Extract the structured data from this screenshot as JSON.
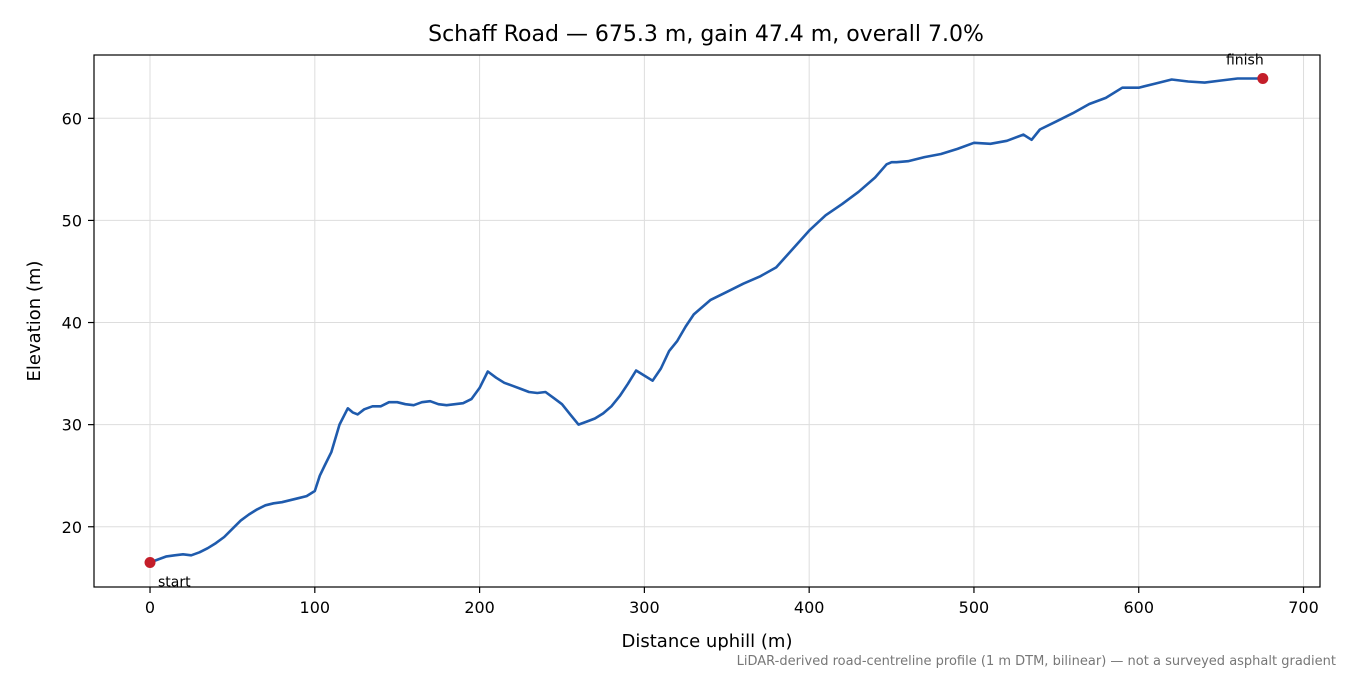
{
  "chart_data": {
    "type": "line",
    "title": "Schaff Road — 675.3 m, gain 47.4 m, overall 7.0%",
    "xlabel": "Distance uphill (m)",
    "ylabel": "Elevation (m)",
    "xlim": [
      -34,
      710
    ],
    "ylim": [
      14.1,
      66.2
    ],
    "xticks": [
      0,
      100,
      200,
      300,
      400,
      500,
      600,
      700
    ],
    "yticks": [
      20,
      30,
      40,
      50,
      60
    ],
    "grid": true,
    "line_color": "#1f5bad",
    "marker_color": "#c41e2a",
    "x": [
      0,
      5,
      10,
      15,
      20,
      25,
      30,
      35,
      40,
      45,
      50,
      55,
      60,
      65,
      70,
      75,
      80,
      85,
      90,
      95,
      100,
      103,
      106,
      110,
      115,
      120,
      123,
      126,
      130,
      135,
      140,
      145,
      150,
      155,
      160,
      165,
      170,
      175,
      180,
      185,
      190,
      195,
      200,
      205,
      210,
      215,
      220,
      225,
      230,
      235,
      240,
      245,
      250,
      255,
      260,
      265,
      270,
      275,
      280,
      285,
      290,
      295,
      300,
      305,
      310,
      315,
      320,
      325,
      330,
      340,
      350,
      360,
      370,
      380,
      390,
      400,
      410,
      420,
      430,
      440,
      447,
      450,
      453,
      460,
      470,
      480,
      490,
      500,
      510,
      520,
      530,
      535,
      540,
      550,
      560,
      570,
      580,
      590,
      600,
      610,
      620,
      630,
      640,
      650,
      660,
      670,
      675.3
    ],
    "y": [
      16.5,
      16.8,
      17.1,
      17.2,
      17.3,
      17.2,
      17.5,
      17.9,
      18.4,
      19.0,
      19.8,
      20.6,
      21.2,
      21.7,
      22.1,
      22.3,
      22.4,
      22.6,
      22.8,
      23.0,
      23.5,
      25.0,
      26.0,
      27.3,
      30.0,
      31.6,
      31.2,
      31.0,
      31.5,
      31.8,
      31.8,
      32.2,
      32.2,
      32.0,
      31.9,
      32.2,
      32.3,
      32.0,
      31.9,
      32.0,
      32.1,
      32.5,
      33.6,
      35.2,
      34.6,
      34.1,
      33.8,
      33.5,
      33.2,
      33.1,
      33.2,
      32.6,
      32.0,
      31.0,
      30.0,
      30.3,
      30.6,
      31.1,
      31.8,
      32.8,
      34.0,
      35.3,
      34.8,
      34.3,
      35.5,
      37.2,
      38.2,
      39.6,
      40.8,
      42.2,
      43.0,
      43.8,
      44.5,
      45.4,
      47.2,
      49.0,
      50.5,
      51.6,
      52.8,
      54.2,
      55.5,
      55.7,
      55.7,
      55.8,
      56.2,
      56.5,
      57.0,
      57.6,
      57.5,
      57.8,
      58.4,
      57.9,
      58.9,
      59.7,
      60.5,
      61.4,
      62.0,
      63.0,
      63.0,
      63.4,
      63.8,
      63.6,
      63.5,
      63.7,
      63.9,
      63.9,
      63.9
    ],
    "annotations": [
      {
        "label": "start",
        "x": 0,
        "y": 16.5
      },
      {
        "label": "finish",
        "x": 675.3,
        "y": 63.9
      }
    ],
    "footnote": "LiDAR-derived road-centreline profile (1 m DTM, bilinear) — not a surveyed asphalt gradient"
  }
}
